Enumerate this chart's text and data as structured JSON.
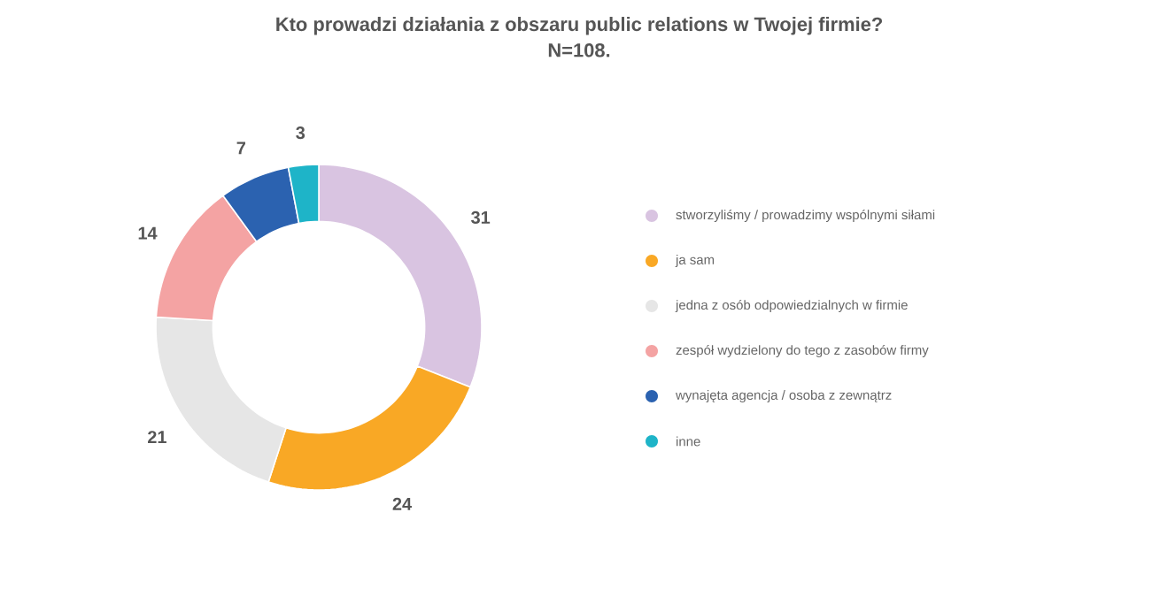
{
  "chart_data": {
    "type": "donut",
    "title": "Kto prowadzi działania z obszaru public relations w Twojej firmie?",
    "subtitle": "N=108.",
    "categories": [
      "stworzyliśmy / prowadzimy wspólnymi siłami",
      "ja sam",
      "jedna z osób odpowiedzialnych w firmie",
      "zespół wydzielony do tego z zasobów firmy",
      "wynajęta agencja / osoba z zewnątrz",
      "inne"
    ],
    "values": [
      31,
      24,
      21,
      14,
      7,
      3
    ],
    "colors": [
      "#d9c4e1",
      "#f9a825",
      "#e6e6e6",
      "#f4a3a3",
      "#2b62b0",
      "#1eb4c8"
    ],
    "data_labels": true,
    "legend": "right"
  }
}
